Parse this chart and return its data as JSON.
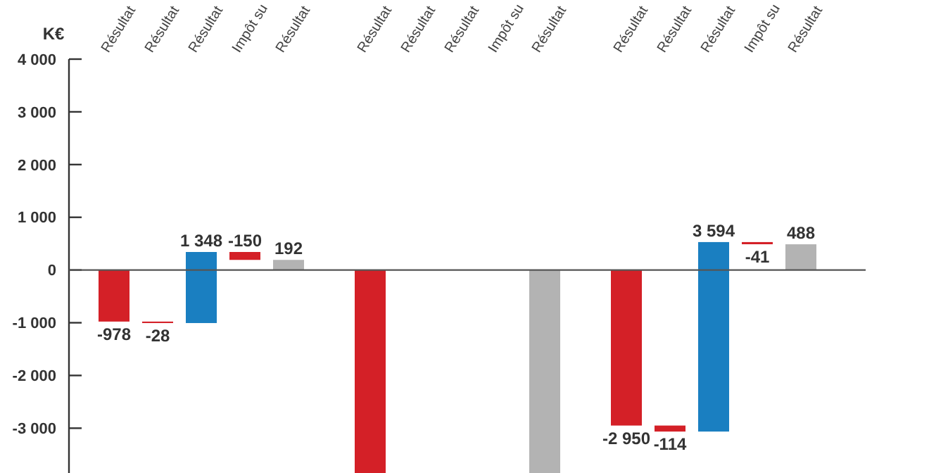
{
  "chart_data": {
    "type": "bar",
    "ylabel": "K€",
    "categories": [
      "Résultat",
      "Résultat",
      "Résultat",
      "Impôt su",
      "Résultat",
      "Résultat",
      "Résultat",
      "Résultat",
      "Impôt su",
      "Résultat",
      "Résultat",
      "Résultat",
      "Résultat",
      "Impôt su",
      "Résultat"
    ],
    "values": [
      -978,
      -28,
      1348,
      -150,
      192,
      -3850,
      null,
      null,
      null,
      -3850,
      -2950,
      -114,
      3594,
      -41,
      488
    ],
    "base": [
      0,
      -978,
      -1006,
      342,
      0,
      0,
      null,
      null,
      null,
      0,
      0,
      -2950,
      -3064,
      530,
      0
    ],
    "colors": [
      "#d42027",
      "#d42027",
      "#1a7fc1",
      "#d42027",
      "#b3b3b3",
      "#d42027",
      null,
      null,
      null,
      "#b3b3b3",
      "#d42027",
      "#d42027",
      "#1a7fc1",
      "#d42027",
      "#b3b3b3"
    ],
    "value_labels": [
      "-978",
      "-28",
      "1 348",
      "-150",
      "192",
      null,
      null,
      null,
      null,
      null,
      "-2 950",
      "-114",
      "3 594",
      "-41",
      "488"
    ],
    "ylim": [
      -3850,
      4000
    ],
    "yticks": [
      {
        "value": 4000,
        "label": "4 000"
      },
      {
        "value": 3000,
        "label": "3 000"
      },
      {
        "value": 2000,
        "label": "2 000"
      },
      {
        "value": 1000,
        "label": "1 000"
      },
      0,
      {
        "value": -1000,
        "label": "-1 000"
      },
      {
        "value": -2000,
        "label": "-2 000"
      },
      {
        "value": -3000,
        "label": "-3 000"
      }
    ]
  }
}
